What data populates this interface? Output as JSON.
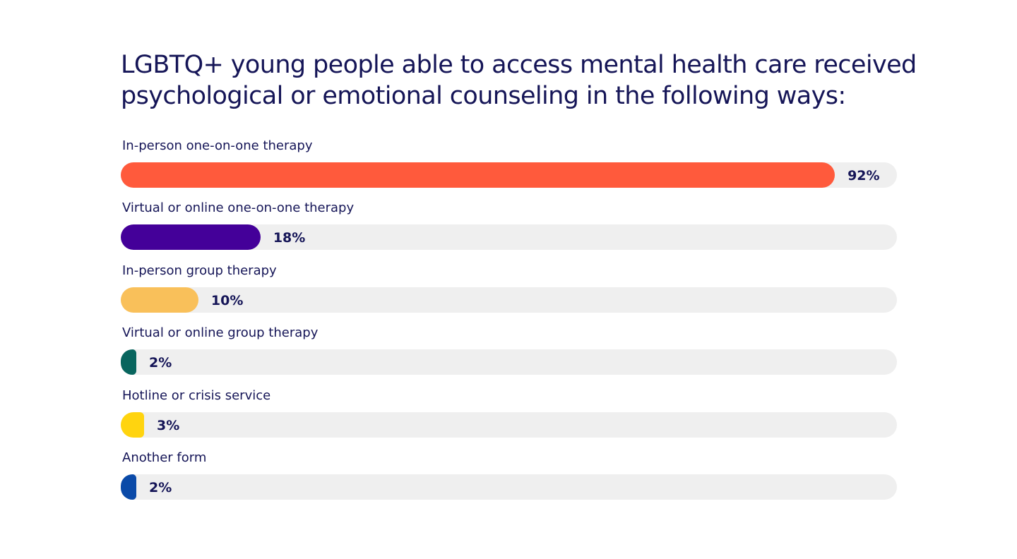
{
  "chart_data": {
    "type": "bar",
    "orientation": "horizontal",
    "title": "LGBTQ+ young people able to access mental health care received psychological or emotional counseling in the following ways:",
    "title_lines": [
      "LGBTQ+ young people able to access mental health care received",
      "psychological or emotional counseling in the following ways:"
    ],
    "xlabel": "",
    "ylabel": "",
    "xlim": [
      0,
      100
    ],
    "grid": false,
    "legend": "none",
    "value_suffix": "%",
    "categories": [
      "In-person one-on-one therapy",
      "Virtual or online one-on-one therapy",
      "In-person group therapy",
      "Virtual or online group therapy",
      "Hotline or crisis service",
      "Another form"
    ],
    "values": [
      92,
      18,
      10,
      2,
      3,
      2
    ],
    "value_labels": [
      "92%",
      "18%",
      "10%",
      "2%",
      "3%",
      "2%"
    ],
    "colors": [
      "#ff5a3c",
      "#440099",
      "#f9c05a",
      "#08655e",
      "#ffd40f",
      "#0a4aa8"
    ],
    "track_color": "#efefef"
  }
}
